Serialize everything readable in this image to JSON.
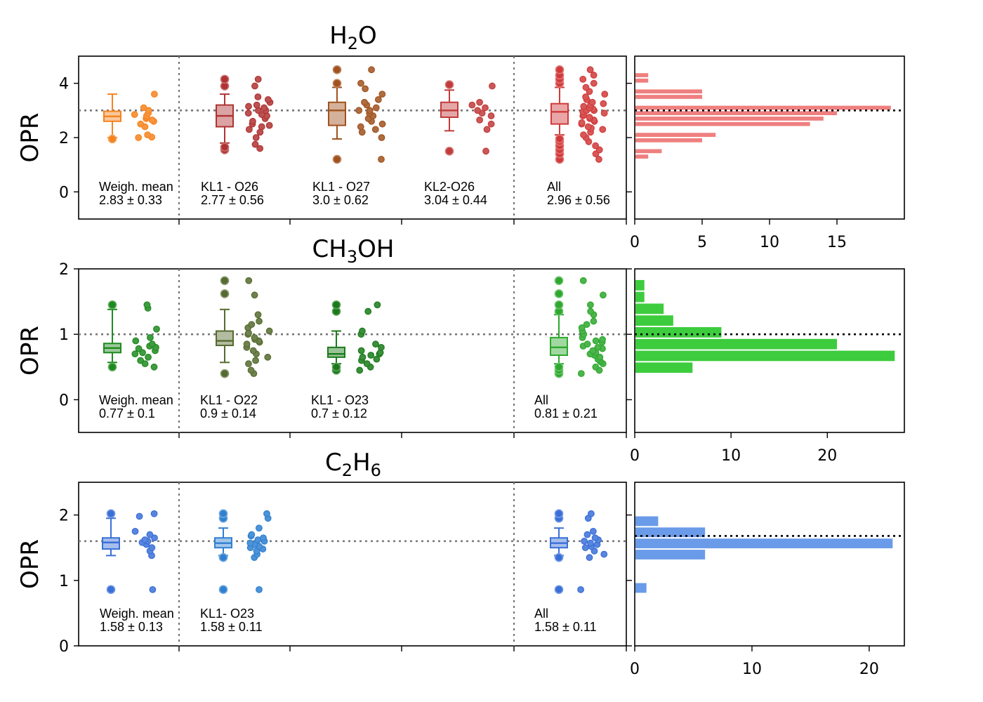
{
  "chart_data": [
    {
      "type": "boxplot",
      "title": "H2O",
      "title_parts": {
        "base": "H",
        "sub": "2",
        "rest": "O"
      },
      "ylabel": "OPR",
      "ylim": [
        -1,
        5
      ],
      "yticks": [
        "0",
        "2",
        "4"
      ],
      "reference_line": 3.0,
      "groups": [
        {
          "label": "Weigh. mean",
          "stats": "2.83 ± 0.33",
          "color": "#f5831f",
          "box": {
            "q1": 2.6,
            "median": 2.78,
            "q3": 2.97,
            "whisker_low": 2.0,
            "whisker_high": 3.6
          },
          "outliers": [
            1.95
          ],
          "points": [
            2.0,
            2.02,
            2.1,
            2.4,
            2.5,
            2.6,
            2.65,
            2.7,
            2.75,
            2.8,
            2.85,
            2.9,
            3.0,
            3.1,
            3.6
          ]
        },
        {
          "label": "KL1 - O26",
          "stats": "2.77 ± 0.56",
          "color": "#b03232",
          "box": {
            "q1": 2.4,
            "median": 2.8,
            "q3": 3.2,
            "whisker_low": 1.8,
            "whisker_high": 3.6
          },
          "outliers": [
            1.55,
            1.65,
            3.9,
            4.15
          ],
          "points": [
            1.6,
            1.75,
            2.0,
            2.2,
            2.3,
            2.4,
            2.45,
            2.5,
            2.6,
            2.7,
            2.8,
            2.85,
            2.9,
            3.0,
            3.0,
            3.1,
            3.15,
            3.2,
            3.3,
            3.4,
            3.5,
            3.9,
            4.15
          ]
        },
        {
          "label": "KL1 - O27",
          "stats": "3.0 ± 0.62",
          "color": "#a0521e",
          "box": {
            "q1": 2.45,
            "median": 3.0,
            "q3": 3.3,
            "whisker_low": 1.95,
            "whisker_high": 3.85
          },
          "outliers": [
            1.2,
            4.0,
            4.5
          ],
          "points": [
            1.2,
            2.0,
            2.2,
            2.3,
            2.4,
            2.5,
            2.6,
            2.7,
            2.8,
            2.9,
            3.0,
            3.0,
            3.1,
            3.2,
            3.3,
            3.4,
            3.6,
            3.8,
            4.0,
            4.5
          ]
        },
        {
          "label": "KL2-O26",
          "stats": "3.04 ± 0.44",
          "color": "#c23b3b",
          "box": {
            "q1": 2.75,
            "median": 3.0,
            "q3": 3.3,
            "whisker_low": 2.25,
            "whisker_high": 3.75
          },
          "outliers": [
            1.5,
            3.95
          ],
          "points": [
            1.5,
            2.3,
            2.5,
            2.65,
            2.8,
            2.9,
            3.0,
            3.1,
            3.2,
            3.3,
            3.9
          ]
        },
        {
          "label": "All",
          "stats": "2.96 ± 0.56",
          "color": "#d13a3a",
          "box": {
            "q1": 2.5,
            "median": 2.95,
            "q3": 3.25,
            "whisker_low": 2.1,
            "whisker_high": 3.85
          },
          "outliers": [
            1.2,
            1.4,
            1.55,
            1.7,
            1.85,
            1.95,
            4.0,
            4.15,
            4.3,
            4.5
          ],
          "points": [
            1.2,
            1.4,
            1.55,
            1.7,
            1.85,
            2.0,
            2.1,
            2.2,
            2.3,
            2.35,
            2.4,
            2.5,
            2.55,
            2.6,
            2.65,
            2.7,
            2.75,
            2.8,
            2.85,
            2.9,
            2.95,
            3.0,
            3.0,
            3.05,
            3.1,
            3.15,
            3.2,
            3.25,
            3.3,
            3.4,
            3.5,
            3.6,
            3.7,
            3.85,
            4.0,
            4.15,
            4.3,
            4.5
          ]
        }
      ],
      "histogram": {
        "color": "#ef7f7f",
        "xlim": [
          0,
          20
        ],
        "xticks": [
          "0",
          "5",
          "10",
          "15"
        ],
        "reference_line": 3.0,
        "bins": [
          {
            "y0": 1.2,
            "y1": 1.4,
            "count": 1
          },
          {
            "y0": 1.4,
            "y1": 1.6,
            "count": 2
          },
          {
            "y0": 1.6,
            "y1": 1.8,
            "count": 0
          },
          {
            "y0": 1.8,
            "y1": 2.0,
            "count": 5
          },
          {
            "y0": 2.0,
            "y1": 2.2,
            "count": 6
          },
          {
            "y0": 2.2,
            "y1": 2.4,
            "count": 0
          },
          {
            "y0": 2.4,
            "y1": 2.6,
            "count": 13
          },
          {
            "y0": 2.6,
            "y1": 2.8,
            "count": 14
          },
          {
            "y0": 2.8,
            "y1": 3.0,
            "count": 15
          },
          {
            "y0": 3.0,
            "y1": 3.2,
            "count": 19
          },
          {
            "y0": 3.2,
            "y1": 3.4,
            "count": 0
          },
          {
            "y0": 3.4,
            "y1": 3.6,
            "count": 5
          },
          {
            "y0": 3.6,
            "y1": 3.8,
            "count": 5
          },
          {
            "y0": 3.8,
            "y1": 4.0,
            "count": 0
          },
          {
            "y0": 4.0,
            "y1": 4.2,
            "count": 1
          },
          {
            "y0": 4.2,
            "y1": 4.4,
            "count": 1
          }
        ]
      }
    },
    {
      "type": "boxplot",
      "title": "CH3OH",
      "title_parts": {
        "base": "CH",
        "sub": "3",
        "rest": "OH"
      },
      "ylabel": "OPR",
      "ylim": [
        -0.5,
        2
      ],
      "yticks": [
        "0",
        "1",
        "2"
      ],
      "reference_line": 1.0,
      "groups": [
        {
          "label": "Weigh. mean",
          "stats": "0.77 ± 0.1",
          "color": "#1f8a1f",
          "box": {
            "q1": 0.72,
            "median": 0.79,
            "q3": 0.86,
            "whisker_low": 0.57,
            "whisker_high": 1.38
          },
          "outliers": [
            0.5,
            1.45
          ],
          "points": [
            0.5,
            0.55,
            0.6,
            0.65,
            0.7,
            0.72,
            0.75,
            0.78,
            0.8,
            0.82,
            0.85,
            0.9,
            0.95,
            1.08,
            1.4,
            1.45
          ]
        },
        {
          "label": "KL1 - O22",
          "stats": "0.9 ± 0.14",
          "color": "#556b2f",
          "box": {
            "q1": 0.83,
            "median": 0.9,
            "q3": 1.05,
            "whisker_low": 0.57,
            "whisker_high": 1.38
          },
          "outliers": [
            0.4,
            1.62,
            1.82
          ],
          "points": [
            0.4,
            0.45,
            0.55,
            0.6,
            0.65,
            0.7,
            0.75,
            0.8,
            0.85,
            0.88,
            0.9,
            0.92,
            0.95,
            1.0,
            1.02,
            1.05,
            1.1,
            1.15,
            1.2,
            1.3,
            1.6,
            1.82
          ]
        },
        {
          "label": "KL1 - O23",
          "stats": "0.7 ± 0.12",
          "color": "#1a7a1a",
          "box": {
            "q1": 0.65,
            "median": 0.7,
            "q3": 0.8,
            "whisker_low": 0.55,
            "whisker_high": 1.05
          },
          "outliers": [
            0.45,
            0.5,
            1.35,
            1.45
          ],
          "points": [
            0.45,
            0.5,
            0.55,
            0.6,
            0.62,
            0.65,
            0.68,
            0.7,
            0.72,
            0.75,
            0.8,
            0.85,
            1.0,
            1.05,
            1.35,
            1.45
          ]
        },
        {
          "label": "All",
          "stats": "0.81 ± 0.21",
          "color": "#2ea82e",
          "box": {
            "q1": 0.68,
            "median": 0.8,
            "q3": 0.95,
            "whisker_low": 0.55,
            "whisker_high": 1.3
          },
          "outliers": [
            0.4,
            0.45,
            0.5,
            1.35,
            1.45,
            1.62,
            1.82
          ],
          "points": [
            0.4,
            0.45,
            0.5,
            0.55,
            0.58,
            0.6,
            0.62,
            0.65,
            0.68,
            0.7,
            0.72,
            0.75,
            0.78,
            0.8,
            0.82,
            0.85,
            0.88,
            0.9,
            0.92,
            0.95,
            1.0,
            1.05,
            1.1,
            1.15,
            1.2,
            1.3,
            1.35,
            1.45,
            1.6,
            1.82
          ]
        }
      ],
      "histogram": {
        "color": "#3dcc3d",
        "xlim": [
          0,
          28
        ],
        "xticks": [
          "0",
          "10",
          "20"
        ],
        "reference_line": 1.0,
        "bins": [
          {
            "y0": 0.4,
            "y1": 0.58,
            "count": 6
          },
          {
            "y0": 0.58,
            "y1": 0.76,
            "count": 27
          },
          {
            "y0": 0.76,
            "y1": 0.94,
            "count": 21
          },
          {
            "y0": 0.94,
            "y1": 1.12,
            "count": 9
          },
          {
            "y0": 1.12,
            "y1": 1.3,
            "count": 4
          },
          {
            "y0": 1.3,
            "y1": 1.48,
            "count": 3
          },
          {
            "y0": 1.48,
            "y1": 1.66,
            "count": 1
          },
          {
            "y0": 1.66,
            "y1": 1.84,
            "count": 1
          }
        ]
      }
    },
    {
      "type": "boxplot",
      "title": "C2H6",
      "title_parts": {
        "base": "C",
        "sub": "2",
        "mid": "H",
        "sub2": "6"
      },
      "ylabel": "OPR",
      "ylim": [
        0,
        2.5
      ],
      "yticks": [
        "0",
        "1",
        "2"
      ],
      "reference_line": 1.6,
      "groups": [
        {
          "label": "Weigh. mean",
          "stats": "1.58 ± 0.13",
          "color": "#3a6fd8",
          "box": {
            "q1": 1.48,
            "median": 1.58,
            "q3": 1.65,
            "whisker_low": 1.38,
            "whisker_high": 1.95
          },
          "outliers": [
            0.86,
            2.02
          ],
          "points": [
            0.86,
            1.38,
            1.45,
            1.5,
            1.55,
            1.58,
            1.6,
            1.62,
            1.65,
            1.7,
            1.75,
            1.98,
            2.02
          ]
        },
        {
          "label": "KL1- O23",
          "stats": "1.58 ± 0.11",
          "color": "#2f80d0",
          "box": {
            "q1": 1.5,
            "median": 1.57,
            "q3": 1.65,
            "whisker_low": 1.38,
            "whisker_high": 1.8
          },
          "outliers": [
            0.86,
            1.35,
            1.95,
            2.02
          ],
          "points": [
            0.86,
            1.35,
            1.4,
            1.45,
            1.48,
            1.5,
            1.52,
            1.55,
            1.57,
            1.6,
            1.62,
            1.65,
            1.68,
            1.7,
            1.8,
            1.95,
            2.02
          ]
        },
        {
          "label": "All",
          "stats": "1.58 ± 0.11",
          "color": "#3a6fd8",
          "box": {
            "q1": 1.5,
            "median": 1.57,
            "q3": 1.65,
            "whisker_low": 1.38,
            "whisker_high": 1.8
          },
          "outliers": [
            0.86,
            1.35,
            1.95,
            2.02
          ],
          "points": [
            0.86,
            1.35,
            1.4,
            1.45,
            1.5,
            1.52,
            1.55,
            1.57,
            1.6,
            1.62,
            1.65,
            1.7,
            1.75,
            1.95,
            2.02
          ]
        }
      ],
      "histogram": {
        "color": "#6a9be8",
        "xlim": [
          0,
          23
        ],
        "xticks": [
          "0",
          "10",
          "20"
        ],
        "reference_line": 1.68,
        "bins": [
          {
            "y0": 0.8,
            "y1": 0.97,
            "count": 1
          },
          {
            "y0": 0.97,
            "y1": 1.14,
            "count": 0
          },
          {
            "y0": 1.14,
            "y1": 1.31,
            "count": 0
          },
          {
            "y0": 1.31,
            "y1": 1.48,
            "count": 6
          },
          {
            "y0": 1.48,
            "y1": 1.65,
            "count": 22
          },
          {
            "y0": 1.65,
            "y1": 1.82,
            "count": 6
          },
          {
            "y0": 1.82,
            "y1": 1.99,
            "count": 2
          }
        ]
      }
    }
  ]
}
